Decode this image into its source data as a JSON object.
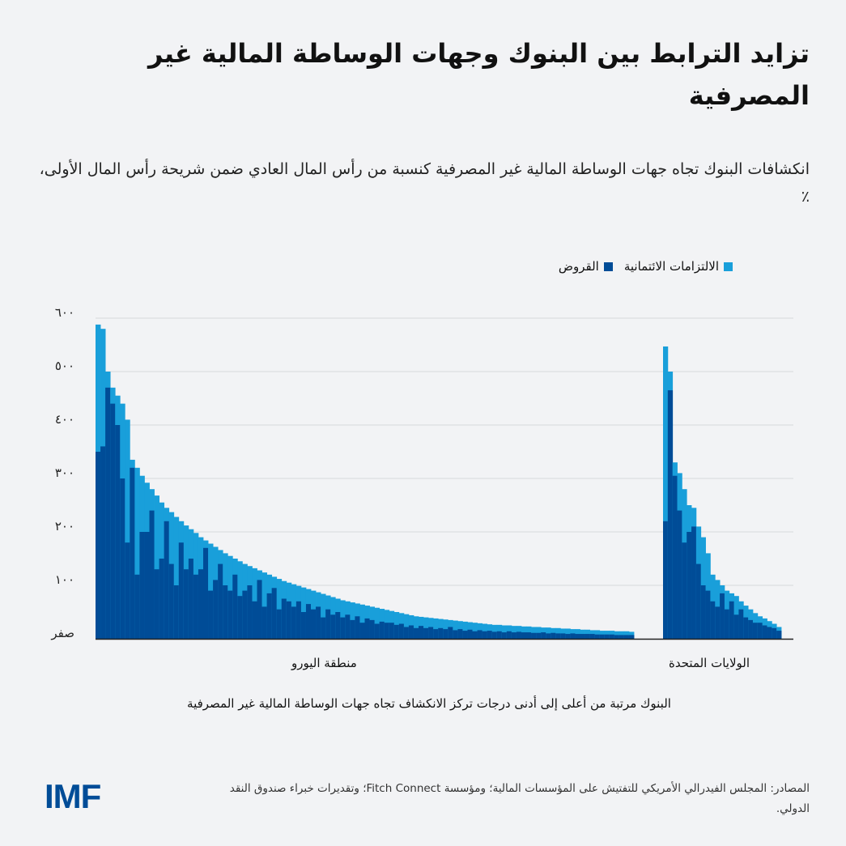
{
  "title": "تزايد الترابط بين البنوك وجهات الوساطة المالية غير المصرفية",
  "subtitle": "انكشافات البنوك تجاه جهات الوساطة المالية غير المصرفية كنسبة من رأس المال العادي ضمن شريحة رأس المال الأولى، ٪",
  "sources": "المصادر: المجلس الفيدرالي الأمريكي للتفتيش على المؤسسات المالية؛ ومؤسسة Fitch Connect؛ وتقديرات خبراء صندوق النقد الدولي.",
  "logo": "IMF",
  "colors": {
    "credit_lines": "#199fda",
    "loans": "#004c97",
    "background": "#f2f3f5",
    "grid": "#d6d8dc"
  },
  "chart_data": {
    "type": "bar",
    "stacking": "overlay",
    "xlabel": "البنوك مرتبة من أعلى إلى أدنى درجات تركز الانكشاف تجاه جهات الوساطة المالية غير المصرفية",
    "ylabel": "",
    "ylim": [
      0,
      600
    ],
    "yticks": [
      0,
      100,
      200,
      300,
      400,
      500,
      600
    ],
    "ytick_labels": [
      "صفر",
      "١٠٠",
      "٢٠٠",
      "٣٠٠",
      "٤٠٠",
      "٥٠٠",
      "٦٠٠"
    ],
    "grid": true,
    "legend_position": "top",
    "legend": [
      {
        "key": "credit_lines",
        "label": "الالتزامات الائتمانية"
      },
      {
        "key": "loans",
        "label": "القروض"
      }
    ],
    "groups": [
      {
        "label": "منطقة اليورو",
        "total": [
          588,
          580,
          500,
          470,
          455,
          440,
          410,
          335,
          320,
          305,
          292,
          280,
          268,
          255,
          245,
          237,
          228,
          220,
          212,
          205,
          198,
          190,
          184,
          178,
          172,
          166,
          160,
          155,
          150,
          145,
          140,
          136,
          132,
          128,
          124,
          120,
          116,
          112,
          108,
          105,
          102,
          99,
          96,
          93,
          90,
          87,
          84,
          81,
          78,
          75,
          72,
          70,
          68,
          66,
          64,
          62,
          60,
          58,
          56,
          54,
          52,
          50,
          48,
          46,
          44,
          42,
          41,
          40,
          39,
          38,
          37,
          36,
          35,
          34,
          33,
          32,
          31,
          30,
          29,
          28,
          27,
          26,
          26,
          25,
          25,
          24,
          24,
          23,
          23,
          22,
          22,
          21,
          21,
          20,
          20,
          19,
          19,
          18,
          18,
          17,
          17,
          16,
          16,
          15,
          15,
          15,
          14,
          14,
          14,
          13
        ],
        "loans": [
          350,
          360,
          470,
          440,
          400,
          300,
          180,
          320,
          120,
          200,
          200,
          240,
          130,
          150,
          220,
          140,
          100,
          180,
          130,
          150,
          120,
          130,
          170,
          90,
          110,
          140,
          100,
          90,
          120,
          80,
          90,
          100,
          70,
          110,
          60,
          85,
          95,
          55,
          75,
          70,
          60,
          70,
          50,
          65,
          55,
          60,
          40,
          55,
          45,
          50,
          40,
          45,
          35,
          42,
          30,
          38,
          35,
          28,
          32,
          30,
          30,
          26,
          28,
          22,
          25,
          20,
          24,
          20,
          22,
          18,
          20,
          18,
          22,
          16,
          18,
          15,
          17,
          14,
          16,
          14,
          15,
          13,
          14,
          12,
          14,
          12,
          13,
          12,
          12,
          11,
          11,
          12,
          10,
          11,
          10,
          10,
          9,
          10,
          9,
          9,
          9,
          9,
          8,
          8,
          8,
          8,
          7,
          7,
          7,
          7
        ]
      },
      {
        "label": "الولايات المتحدة",
        "total": [
          547,
          500,
          330,
          310,
          280,
          250,
          245,
          210,
          190,
          160,
          120,
          110,
          100,
          90,
          85,
          80,
          70,
          62,
          55,
          48,
          42,
          38,
          33,
          28,
          22
        ],
        "loans": [
          220,
          465,
          305,
          240,
          180,
          200,
          210,
          140,
          100,
          90,
          70,
          60,
          85,
          55,
          70,
          45,
          55,
          40,
          35,
          30,
          30,
          25,
          22,
          20,
          15
        ]
      }
    ]
  }
}
